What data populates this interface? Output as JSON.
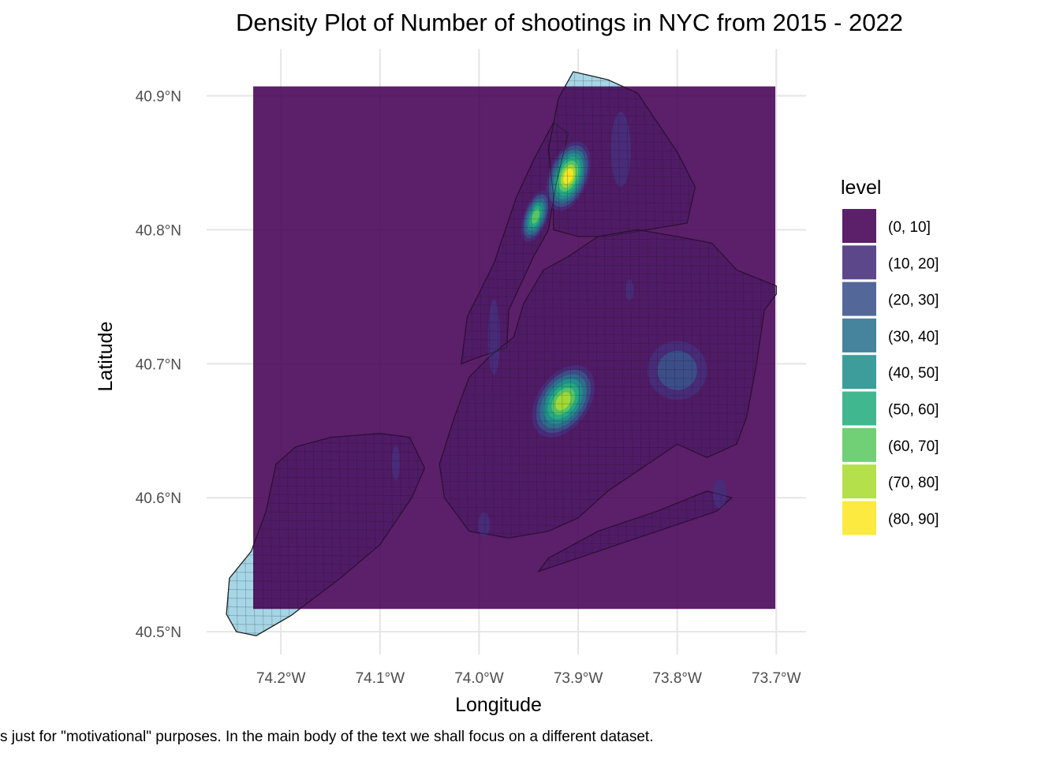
{
  "chart_data": {
    "type": "heatmap",
    "subtype": "filled-density-contour-map",
    "title": "Density Plot of Number of shootings in NYC from 2015 - 2022",
    "xlabel": "Longitude",
    "ylabel": "Latitude",
    "caption": "s just for \"motivational\" purposes. In the main body of the text we shall focus on a different dataset.",
    "x_ticks": [
      {
        "value": -74.2,
        "label": "74.2°W"
      },
      {
        "value": -74.1,
        "label": "74.1°W"
      },
      {
        "value": -74.0,
        "label": "74.0°W"
      },
      {
        "value": -73.9,
        "label": "73.9°W"
      },
      {
        "value": -73.8,
        "label": "73.8°W"
      },
      {
        "value": -73.7,
        "label": "73.7°W"
      }
    ],
    "y_ticks": [
      {
        "value": 40.5,
        "label": "40.5°N"
      },
      {
        "value": 40.6,
        "label": "40.6°N"
      },
      {
        "value": 40.7,
        "label": "40.7°N"
      },
      {
        "value": 40.8,
        "label": "40.8°N"
      },
      {
        "value": 40.9,
        "label": "40.9°N"
      }
    ],
    "xlim": [
      -74.275,
      -73.67
    ],
    "ylim": [
      40.483,
      40.935
    ],
    "grid": true,
    "density_extent": {
      "lon": [
        -74.228,
        -73.701
      ],
      "lat": [
        40.517,
        40.907
      ]
    },
    "legend": {
      "title": "level",
      "position": "right",
      "entries": [
        {
          "label": "(0, 10]",
          "color": "#440154"
        },
        {
          "label": "(10, 20]",
          "color": "#472D7B"
        },
        {
          "label": "(20, 30]",
          "color": "#3B528B"
        },
        {
          "label": "(30, 40]",
          "color": "#2C728E"
        },
        {
          "label": "(40, 50]",
          "color": "#21908C"
        },
        {
          "label": "(50, 60]",
          "color": "#27AD81"
        },
        {
          "label": "(60, 70]",
          "color": "#5DC863"
        },
        {
          "label": "(70, 80]",
          "color": "#AADC32"
        },
        {
          "label": "(80, 90]",
          "color": "#FDE725"
        }
      ]
    },
    "hotspots": [
      {
        "lon": -73.91,
        "lat": 40.84,
        "peak_level": 9,
        "rx": 0.02,
        "ry": 0.027
      },
      {
        "lon": -73.943,
        "lat": 40.81,
        "peak_level": 7,
        "rx": 0.012,
        "ry": 0.02
      },
      {
        "lon": -73.915,
        "lat": 40.672,
        "peak_level": 8,
        "rx": 0.026,
        "ry": 0.03
      },
      {
        "lon": -73.857,
        "lat": 40.86,
        "peak_level": 2,
        "rx": 0.01,
        "ry": 0.028
      },
      {
        "lon": -73.8,
        "lat": 40.695,
        "peak_level": 3,
        "rx": 0.03,
        "ry": 0.022
      },
      {
        "lon": -73.985,
        "lat": 40.72,
        "peak_level": 2,
        "rx": 0.006,
        "ry": 0.028
      },
      {
        "lon": -74.084,
        "lat": 40.626,
        "peak_level": 2,
        "rx": 0.004,
        "ry": 0.013
      },
      {
        "lon": -73.995,
        "lat": 40.58,
        "peak_level": 2,
        "rx": 0.006,
        "ry": 0.009
      },
      {
        "lon": -73.757,
        "lat": 40.603,
        "peak_level": 2,
        "rx": 0.007,
        "ry": 0.011
      },
      {
        "lon": -73.848,
        "lat": 40.755,
        "peak_level": 2,
        "rx": 0.004,
        "ry": 0.008
      }
    ],
    "colors": {
      "land_outside_density": "#a6d6e6",
      "tract_lines": "#1a1a1a",
      "density_opacity": 0.88
    }
  }
}
